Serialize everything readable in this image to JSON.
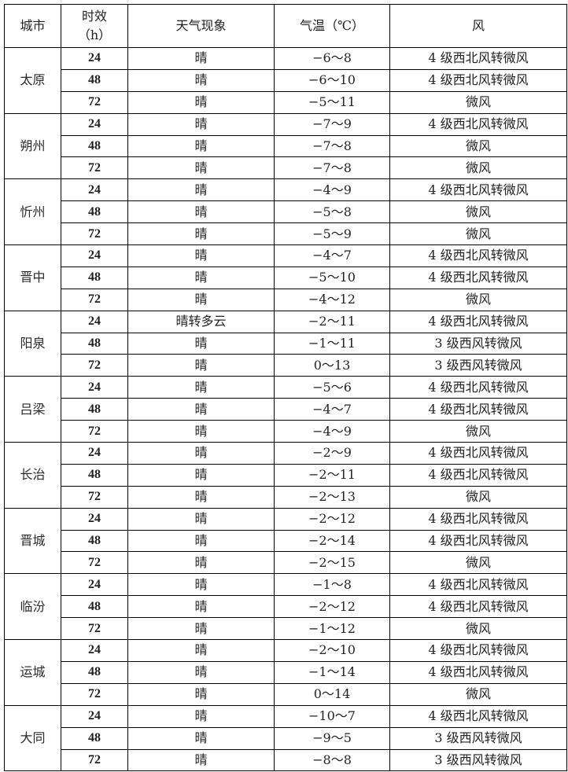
{
  "headers": {
    "city": "城市",
    "hours": "时效（h）",
    "weather": "天气现象",
    "temp": "气温（℃）",
    "wind": "风"
  },
  "cities": [
    {
      "name": "太原",
      "rows": [
        [
          "24",
          "晴",
          "−6～8",
          "4 级西北风转微风"
        ],
        [
          "48",
          "晴",
          "−6～10",
          "4 级西北风转微风"
        ],
        [
          "72",
          "晴",
          "−5～11",
          "微风"
        ]
      ]
    },
    {
      "name": "朔州",
      "rows": [
        [
          "24",
          "晴",
          "−7～9",
          "4 级西北风转微风"
        ],
        [
          "48",
          "晴",
          "−7～8",
          "微风"
        ],
        [
          "72",
          "晴",
          "−7～8",
          "微风"
        ]
      ]
    },
    {
      "name": "忻州",
      "rows": [
        [
          "24",
          "晴",
          "−4～9",
          "4 级西北风转微风"
        ],
        [
          "48",
          "晴",
          "−5～8",
          "微风"
        ],
        [
          "72",
          "晴",
          "−5～9",
          "微风"
        ]
      ]
    },
    {
      "name": "晋中",
      "rows": [
        [
          "24",
          "晴",
          "−4～7",
          "4 级西北风转微风"
        ],
        [
          "48",
          "晴",
          "−5～10",
          "4 级西北风转微风"
        ],
        [
          "72",
          "晴",
          "−4～12",
          "微风"
        ]
      ]
    },
    {
      "name": "阳泉",
      "rows": [
        [
          "24",
          "晴转多云",
          "−2～11",
          "4 级西北风转微风"
        ],
        [
          "48",
          "晴",
          "−1～11",
          "3 级西风转微风"
        ],
        [
          "72",
          "晴",
          "0～13",
          "3 级西风转微风"
        ]
      ]
    },
    {
      "name": "吕梁",
      "rows": [
        [
          "24",
          "晴",
          "−5～6",
          "4 级西北风转微风"
        ],
        [
          "48",
          "晴",
          "−4～7",
          "4 级西北风转微风"
        ],
        [
          "72",
          "晴",
          "−4～9",
          "微风"
        ]
      ]
    },
    {
      "name": "长治",
      "rows": [
        [
          "24",
          "晴",
          "−2～9",
          "4 级西北风转微风"
        ],
        [
          "48",
          "晴",
          "−2～11",
          "4 级西北风转微风"
        ],
        [
          "72",
          "晴",
          "−2～13",
          "微风"
        ]
      ]
    },
    {
      "name": "晋城",
      "rows": [
        [
          "24",
          "晴",
          "−2～12",
          "4 级西北风转微风"
        ],
        [
          "48",
          "晴",
          "−2～14",
          "4 级西北风转微风"
        ],
        [
          "72",
          "晴",
          "−2～15",
          "微风"
        ]
      ]
    },
    {
      "name": "临汾",
      "rows": [
        [
          "24",
          "晴",
          "−1～8",
          "4 级西北风转微风"
        ],
        [
          "48",
          "晴",
          "−2～12",
          "4 级西北风转微风"
        ],
        [
          "72",
          "晴",
          "−1～12",
          "微风"
        ]
      ]
    },
    {
      "name": "运城",
      "rows": [
        [
          "24",
          "晴",
          "−2～10",
          "4 级西北风转微风"
        ],
        [
          "48",
          "晴",
          "−1～14",
          "4 级西北风转微风"
        ],
        [
          "72",
          "晴",
          "0～14",
          "微风"
        ]
      ]
    },
    {
      "name": "大同",
      "rows": [
        [
          "24",
          "晴",
          "−10～7",
          "4 级西北风转微风"
        ],
        [
          "48",
          "晴",
          "−9～5",
          "3 级西风转微风"
        ],
        [
          "72",
          "晴",
          "−8～8",
          "3 级西风转微风"
        ]
      ]
    }
  ]
}
